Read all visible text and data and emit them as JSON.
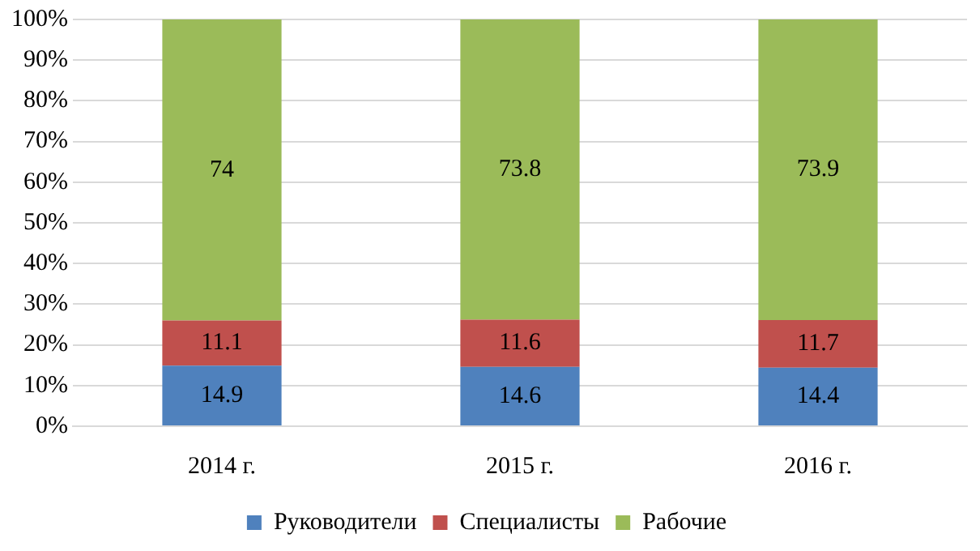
{
  "chart_data": {
    "type": "bar",
    "stacked": true,
    "categories": [
      "2014 г.",
      "2015 г.",
      "2016 г."
    ],
    "series": [
      {
        "name": "Руководители",
        "color": "#4f81bd",
        "values": [
          14.9,
          14.6,
          14.4
        ]
      },
      {
        "name": "Специалисты",
        "color": "#c0504d",
        "values": [
          11.1,
          11.6,
          11.7
        ]
      },
      {
        "name": "Рабочие",
        "color": "#9bbb59",
        "values": [
          74,
          73.8,
          73.9
        ]
      }
    ],
    "ylim": [
      0,
      100
    ],
    "yticks": [
      {
        "value": 0,
        "label": "0%"
      },
      {
        "value": 10,
        "label": "10%"
      },
      {
        "value": 20,
        "label": "20%"
      },
      {
        "value": 30,
        "label": "30%"
      },
      {
        "value": 40,
        "label": "40%"
      },
      {
        "value": 50,
        "label": "50%"
      },
      {
        "value": 60,
        "label": "60%"
      },
      {
        "value": 70,
        "label": "70%"
      },
      {
        "value": 80,
        "label": "80%"
      },
      {
        "value": 90,
        "label": "90%"
      },
      {
        "value": 100,
        "label": "100%"
      }
    ],
    "grid": "y",
    "legend": "bottom",
    "data_labels": true
  }
}
